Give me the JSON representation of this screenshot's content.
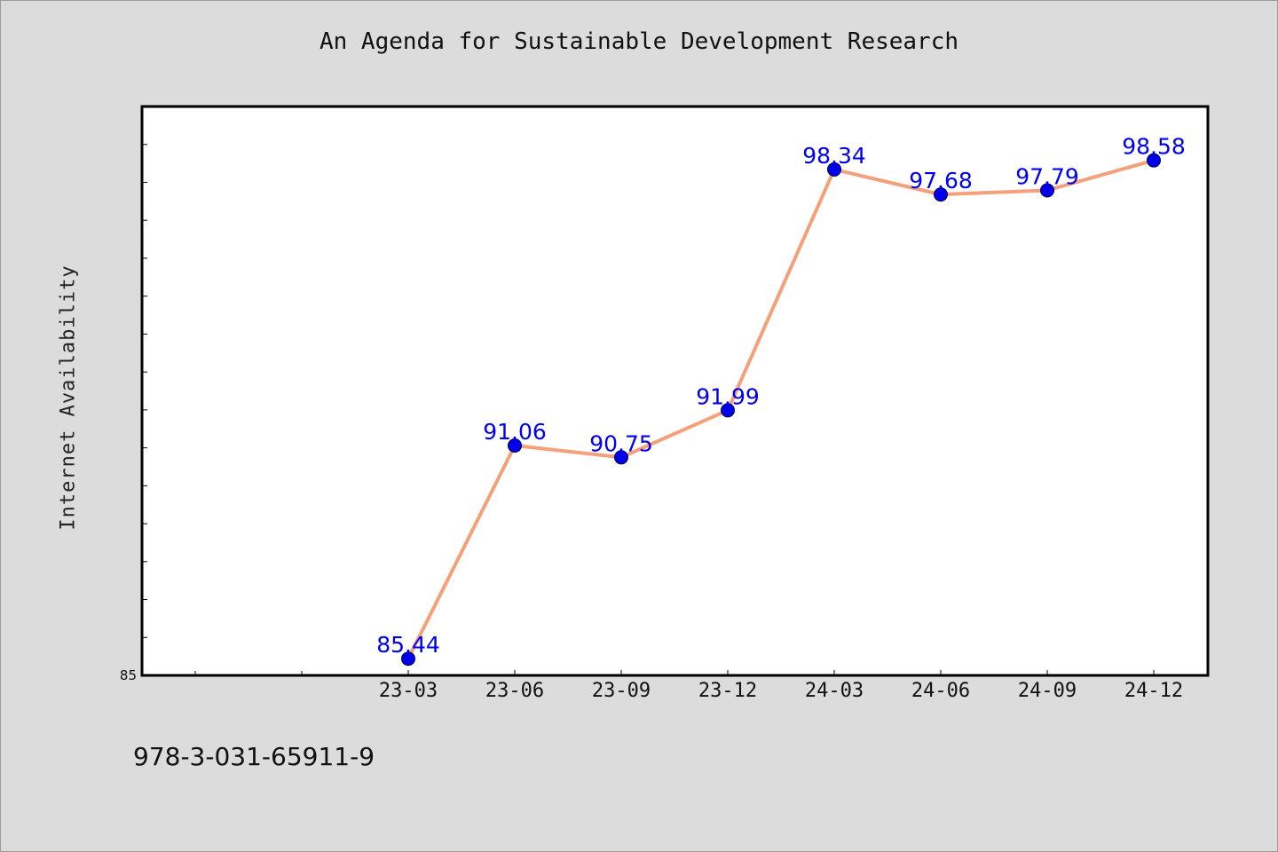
{
  "chart_data": {
    "type": "line",
    "title": "An Agenda for Sustainable Development Research",
    "xlabel": "",
    "ylabel": "Internet Availability",
    "categories": [
      "23-03",
      "23-06",
      "23-09",
      "23-12",
      "24-03",
      "24-06",
      "24-09",
      "24-12"
    ],
    "series": [
      {
        "values": [
          85.44,
          91.06,
          90.75,
          91.99,
          98.34,
          97.68,
          97.79,
          98.58
        ]
      }
    ],
    "data_labels": [
      "85.44",
      "91.06",
      "90.75",
      "91.99",
      "98.34",
      "97.68",
      "97.79",
      "98.58"
    ],
    "y_tick_labels": [
      "85"
    ],
    "ylim": [
      85,
      100
    ],
    "grid": false,
    "line_color": "#f4a07a",
    "marker_color": "#0000ee",
    "label_color": "#0000ee"
  },
  "footer": {
    "code": "978-3-031-65911-9"
  }
}
